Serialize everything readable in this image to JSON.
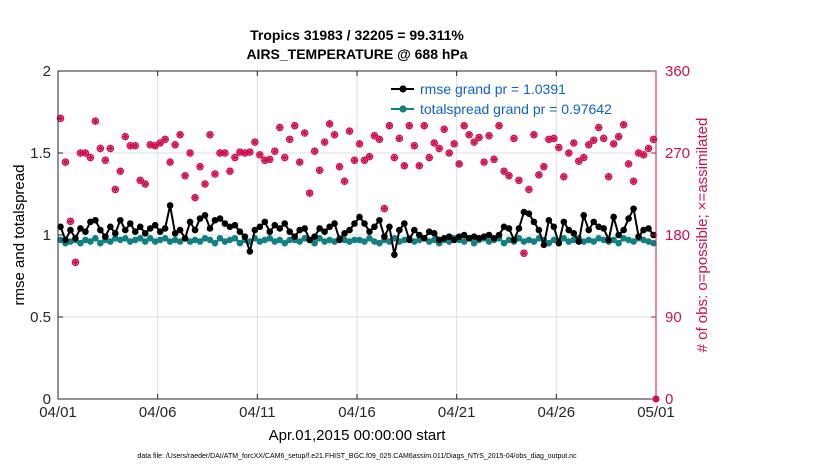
{
  "chart_data": {
    "type": "line",
    "title_line1": "Tropics 31983 / 32205 = 99.311%",
    "title_line2": "AIRS_TEMPERATURE @ 688 hPa",
    "xlabel": "Apr.01,2015 00:00:00 start",
    "ylabel_left": "rmse and totalspread",
    "ylabel_right": "# of obs: o=possible; ×=assimilated",
    "footer": "data file: /Users/raeder/DAI/ATM_forcXX/CAM6_setup/f.e21.FHIST_BGC.f09_025.CAM6assim.011/Diags_NTrS_2015-04/obs_diag_output.nc",
    "x_tick_labels": [
      "04/01",
      "04/06",
      "04/11",
      "04/16",
      "04/21",
      "04/26",
      "05/01"
    ],
    "x_tick_days": [
      0,
      5,
      10,
      15,
      20,
      25,
      30
    ],
    "xlim": [
      0,
      30
    ],
    "ylim_left": [
      0,
      2
    ],
    "y_ticks_left": [
      "0",
      "0.5",
      "1",
      "1.5",
      "2"
    ],
    "ylim_right": [
      0,
      360
    ],
    "y_ticks_right": [
      "0",
      "90",
      "180",
      "270",
      "360"
    ],
    "grid": true,
    "legend_position": "top-right",
    "colors": {
      "rmse": "#000000",
      "spread": "#108080",
      "obs": "#d0104c"
    },
    "x_days": [
      0.125,
      0.375,
      0.625,
      0.875,
      1.125,
      1.375,
      1.625,
      1.875,
      2.125,
      2.375,
      2.625,
      2.875,
      3.125,
      3.375,
      3.625,
      3.875,
      4.125,
      4.375,
      4.625,
      4.875,
      5.125,
      5.375,
      5.625,
      5.875,
      6.125,
      6.375,
      6.625,
      6.875,
      7.125,
      7.375,
      7.625,
      7.875,
      8.125,
      8.375,
      8.625,
      8.875,
      9.125,
      9.375,
      9.625,
      9.875,
      10.125,
      10.375,
      10.625,
      10.875,
      11.125,
      11.375,
      11.625,
      11.875,
      12.125,
      12.375,
      12.625,
      12.875,
      13.125,
      13.375,
      13.625,
      13.875,
      14.125,
      14.375,
      14.625,
      14.875,
      15.125,
      15.375,
      15.625,
      15.875,
      16.125,
      16.375,
      16.625,
      16.875,
      17.125,
      17.375,
      17.625,
      17.875,
      18.125,
      18.375,
      18.625,
      18.875,
      19.125,
      19.375,
      19.625,
      19.875,
      20.125,
      20.375,
      20.625,
      20.875,
      21.125,
      21.375,
      21.625,
      21.875,
      22.125,
      22.375,
      22.625,
      22.875,
      23.125,
      23.375,
      23.625,
      23.875,
      24.125,
      24.375,
      24.625,
      24.875,
      25.125,
      25.375,
      25.625,
      25.875,
      26.125,
      26.375,
      26.625,
      26.875,
      27.125,
      27.375,
      27.625,
      27.875,
      28.125,
      28.375,
      28.625,
      28.875,
      29.125,
      29.375,
      29.625,
      29.875
    ],
    "series": [
      {
        "name": "rmse grand pr = 1.0391",
        "values": [
          1.05,
          0.97,
          1.03,
          0.98,
          1.04,
          1.02,
          1.08,
          1.09,
          1.03,
          0.99,
          1.05,
          1.01,
          1.09,
          1.03,
          1.07,
          1.02,
          1.05,
          1.01,
          1.04,
          1.06,
          1.02,
          1.04,
          1.18,
          1.01,
          1.03,
          0.98,
          1.08,
          1.03,
          1.1,
          1.12,
          1.04,
          1.09,
          1.1,
          1.07,
          1.05,
          1.06,
          1.02,
          0.99,
          0.9,
          1.03,
          1.05,
          1.08,
          1.02,
          1.06,
          1.04,
          1.07,
          1.02,
          0.99,
          1.03,
          1.04,
          0.97,
          0.99,
          1.04,
          1.02,
          1.05,
          1.07,
          0.97,
          1.01,
          1.03,
          1.07,
          1.11,
          1.07,
          1.02,
          1.05,
          1.09,
          0.99,
          1.05,
          0.88,
          1.03,
          1.07,
          0.97,
          1.03,
          1.0,
          0.98,
          1.02,
          1.01,
          0.97,
          0.98,
          0.99,
          0.97,
          0.99,
          1.0,
          0.98,
          0.99,
          0.98,
          0.99,
          1.0,
          0.98,
          1.0,
          1.05,
          1.04,
          0.97,
          1.04,
          1.14,
          1.13,
          1.08,
          1.03,
          0.94,
          1.09,
          1.05,
          0.95,
          1.08,
          1.03,
          1.01,
          0.96,
          1.12,
          1.03,
          1.08,
          1.05,
          1.04,
          0.97,
          1.11,
          1.0,
          1.03,
          1.1,
          1.16,
          0.99,
          1.03,
          1.04,
          1.0
        ],
        "line_style": "solid",
        "marker": "asterisk"
      },
      {
        "name": "totalspread grand pr = 0.97642",
        "values": [
          0.97,
          0.95,
          0.96,
          0.97,
          0.95,
          0.97,
          0.96,
          0.98,
          0.95,
          0.97,
          0.96,
          0.98,
          0.97,
          0.98,
          0.96,
          0.97,
          0.98,
          0.96,
          0.98,
          0.96,
          0.97,
          0.98,
          0.96,
          0.97,
          0.96,
          0.98,
          0.96,
          0.97,
          0.96,
          0.98,
          0.97,
          0.95,
          0.98,
          0.96,
          0.97,
          0.98,
          0.95,
          0.97,
          0.96,
          0.98,
          0.96,
          0.97,
          0.98,
          0.96,
          0.97,
          0.95,
          0.97,
          0.97,
          0.96,
          0.98,
          0.97,
          0.95,
          0.98,
          0.96,
          0.97,
          0.96,
          0.98,
          0.97,
          0.96,
          0.97,
          0.97,
          0.96,
          0.98,
          0.96,
          0.95,
          0.97,
          0.96,
          0.98,
          0.96,
          0.97,
          0.98,
          0.96,
          0.97,
          0.98,
          0.96,
          0.97,
          0.95,
          0.97,
          0.96,
          0.98,
          0.97,
          0.96,
          0.98,
          0.95,
          0.97,
          0.98,
          0.96,
          0.97,
          0.98,
          0.95,
          0.97,
          0.96,
          0.98,
          0.96,
          0.97,
          0.96,
          0.98,
          0.97,
          0.95,
          0.97,
          0.96,
          0.98,
          0.96,
          0.97,
          0.98,
          0.96,
          0.97,
          0.96,
          0.98,
          0.97,
          0.96,
          0.97,
          0.95,
          0.98,
          0.97,
          0.96,
          0.98,
          0.97,
          0.96,
          0.95
        ],
        "line_style": "solid",
        "marker": "circle"
      }
    ],
    "obs_counts": {
      "name": "# of obs",
      "values": [
        308,
        260,
        195,
        150,
        270,
        270,
        265,
        305,
        275,
        262,
        275,
        230,
        250,
        288,
        278,
        278,
        240,
        236,
        279,
        278,
        281,
        285,
        260,
        279,
        290,
        245,
        270,
        221,
        255,
        236,
        290,
        247,
        270,
        270,
        250,
        265,
        271,
        270,
        271,
        282,
        268,
        262,
        263,
        272,
        298,
        265,
        285,
        300,
        260,
        292,
        226,
        272,
        251,
        282,
        302,
        290,
        255,
        239,
        294,
        262,
        280,
        262,
        266,
        289,
        285,
        209,
        300,
        265,
        286,
        256,
        300,
        278,
        256,
        300,
        265,
        281,
        275,
        296,
        270,
        280,
        258,
        300,
        290,
        282,
        287,
        260,
        289,
        263,
        300,
        250,
        245,
        286,
        240,
        160,
        230,
        290,
        246,
        255,
        285,
        286,
        276,
        244,
        270,
        281,
        261,
        265,
        279,
        284,
        298,
        286,
        244,
        280,
        288,
        301,
        258,
        239,
        270,
        268,
        275,
        285
      ]
    }
  }
}
